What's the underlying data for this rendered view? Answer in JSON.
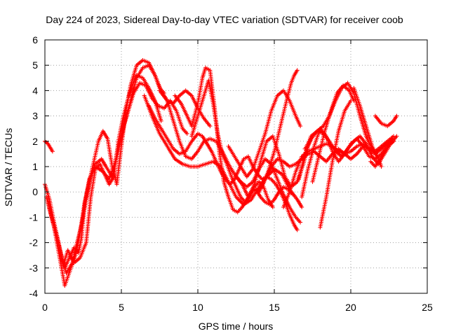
{
  "chart_data": {
    "type": "scatter",
    "title": "Day 224 of 2023, Sidereal Day-to-day VTEC variation (SDTVAR) for receiver coob",
    "xlabel": "GPS time / hours",
    "ylabel": "SDTVAR / TECUs",
    "xlim": [
      0,
      25
    ],
    "ylim": [
      -4,
      6
    ],
    "xticks": [
      "0",
      "5",
      "10",
      "15",
      "20",
      "25"
    ],
    "yticks": [
      "-4",
      "-3",
      "-2",
      "-1",
      "0",
      "1",
      "2",
      "3",
      "4",
      "5",
      "6"
    ],
    "grid": true,
    "legend": "none",
    "marker": "plus",
    "color": "#ff0000",
    "series": [
      {
        "x": [
          0.0,
          0.2,
          0.5
        ],
        "y": [
          2.0,
          1.9,
          1.6
        ]
      },
      {
        "x": [
          0.0,
          0.3,
          0.6,
          1.0,
          1.3,
          1.6,
          1.9,
          2.2,
          2.4,
          2.6,
          2.9,
          3.3,
          3.8,
          4.2,
          4.6,
          5.0,
          5.4,
          5.8,
          6.2,
          6.6,
          7.0,
          7.4,
          7.8,
          8.2,
          8.6,
          9.0,
          9.3
        ],
        "y": [
          0.3,
          -0.3,
          -1.2,
          -2.3,
          -3.0,
          -2.6,
          -2.2,
          -2.4,
          -1.8,
          -0.5,
          0.5,
          1.0,
          0.8,
          0.5,
          1.2,
          2.3,
          3.1,
          3.9,
          4.3,
          4.2,
          3.7,
          3.4,
          3.3,
          3.6,
          3.2,
          2.5,
          2.3
        ]
      },
      {
        "x": [
          0.1,
          0.4,
          0.8,
          1.1,
          1.4,
          1.8,
          2.1,
          2.4,
          2.7,
          3.0,
          3.3,
          3.7,
          4.0,
          4.4,
          4.8,
          5.2,
          5.6,
          6.0,
          6.4,
          6.8,
          7.2,
          7.6,
          8.0,
          8.4,
          8.8,
          9.2,
          9.6,
          10.0,
          10.4,
          10.8
        ],
        "y": [
          -0.2,
          -0.9,
          -1.8,
          -2.6,
          -3.2,
          -2.8,
          -2.0,
          -1.3,
          -0.3,
          0.6,
          1.1,
          1.3,
          1.0,
          0.6,
          1.6,
          2.7,
          3.6,
          4.5,
          4.9,
          5.0,
          4.6,
          4.0,
          3.6,
          3.5,
          3.8,
          4.0,
          3.8,
          3.3,
          2.9,
          2.6
        ]
      },
      {
        "x": [
          0.2,
          0.6,
          1.0,
          1.3,
          1.7,
          2.0,
          2.3,
          2.6,
          2.9,
          3.2,
          3.5,
          3.8,
          4.1,
          4.4,
          4.7,
          5.0,
          5.3,
          5.6,
          6.0,
          6.4,
          6.8,
          7.2,
          7.5,
          7.8
        ],
        "y": [
          -0.4,
          -1.4,
          -2.7,
          -3.7,
          -3.0,
          -2.5,
          -1.6,
          -0.4,
          0.4,
          1.2,
          2.0,
          2.4,
          2.1,
          1.0,
          0.3,
          1.8,
          3.2,
          4.2,
          5.0,
          5.2,
          5.1,
          4.6,
          4.1,
          3.9
        ]
      },
      {
        "x": [
          1.2,
          1.5,
          1.9,
          2.3,
          2.7,
          3.0,
          3.3,
          3.6,
          3.9,
          4.2,
          4.5,
          4.8,
          5.1,
          5.4,
          5.7,
          6.0,
          6.4,
          6.8,
          7.2,
          7.6
        ],
        "y": [
          -2.9,
          -2.3,
          -2.8,
          -2.6,
          -2.0,
          -0.2,
          0.9,
          1.1,
          0.7,
          0.3,
          0.6,
          2.0,
          2.9,
          3.6,
          4.2,
          4.6,
          4.5,
          4.1,
          3.6,
          2.8
        ]
      },
      {
        "x": [
          6.8,
          7.2,
          7.6,
          8.0,
          8.4,
          8.8,
          9.2,
          9.6,
          10.0,
          10.3,
          10.6,
          10.9,
          11.2,
          11.5,
          11.8,
          12.1,
          12.4,
          12.7,
          13.0,
          13.3,
          13.6,
          13.9,
          14.2,
          14.5,
          14.8,
          15.1,
          15.4,
          15.7,
          16.0,
          16.3,
          16.5
        ],
        "y": [
          3.4,
          2.9,
          2.5,
          2.1,
          1.7,
          1.5,
          1.6,
          2.0,
          2.3,
          2.2,
          1.9,
          1.6,
          1.2,
          0.8,
          0.5,
          0.3,
          0.5,
          0.9,
          1.3,
          1.4,
          1.0,
          0.7,
          0.5,
          0.6,
          0.5,
          0.3,
          0.0,
          -0.4,
          -0.9,
          -1.3,
          -1.5
        ]
      },
      {
        "x": [
          6.5,
          7.0,
          7.5,
          8.0,
          8.5,
          9.0,
          9.5,
          10.0,
          10.5,
          11.0,
          11.5,
          12.0,
          12.5,
          13.0,
          13.5,
          14.0,
          14.5,
          15.0,
          15.5,
          16.0,
          16.5,
          16.8
        ],
        "y": [
          3.8,
          3.0,
          2.3,
          1.8,
          1.3,
          1.1,
          1.0,
          1.0,
          1.1,
          1.2,
          1.0,
          0.4,
          -0.2,
          -0.5,
          -0.3,
          0.2,
          0.6,
          0.9,
          0.7,
          0.1,
          -0.3,
          -0.6
        ]
      },
      {
        "x": [
          7.5,
          8.0,
          8.4,
          8.8,
          9.2,
          9.6,
          10.0,
          10.4,
          10.8,
          11.2,
          11.6,
          12.0,
          12.4,
          12.8,
          13.2,
          13.6,
          14.0,
          14.4,
          14.8,
          15.2,
          15.6,
          16.0,
          16.4,
          16.7
        ],
        "y": [
          4.0,
          3.6,
          2.8,
          2.0,
          1.4,
          1.3,
          1.6,
          2.0,
          2.1,
          2.0,
          1.6,
          1.1,
          0.7,
          0.4,
          0.2,
          0.4,
          0.9,
          1.3,
          1.1,
          0.5,
          -0.1,
          -0.6,
          -1.0,
          -1.2
        ]
      },
      {
        "x": [
          8.5,
          8.9,
          9.3,
          9.6,
          10.0,
          10.3,
          10.5,
          10.8,
          11.1,
          11.4,
          11.7,
          12.0,
          12.3,
          12.6,
          12.9,
          13.2,
          13.5,
          13.8,
          14.1,
          14.4,
          14.7,
          15.0,
          15.3,
          15.6,
          15.9,
          16.2
        ],
        "y": [
          3.8,
          3.5,
          3.0,
          2.6,
          3.5,
          4.5,
          4.9,
          4.8,
          3.3,
          1.6,
          0.4,
          -0.2,
          -0.7,
          -0.8,
          -0.6,
          -0.3,
          0.0,
          0.1,
          -0.2,
          -0.4,
          -0.5,
          -0.3,
          0.0,
          0.2,
          0.1,
          -0.1
        ]
      },
      {
        "x": [
          9.6,
          10.0,
          10.4,
          10.7,
          11.0,
          11.3,
          11.6,
          11.9,
          12.2,
          12.5,
          12.8,
          13.1,
          13.4,
          13.7,
          14.0,
          14.3,
          14.6,
          14.9
        ],
        "y": [
          2.2,
          3.0,
          3.8,
          4.4,
          3.5,
          2.3,
          1.5,
          1.1,
          0.6,
          0.2,
          -0.2,
          -0.4,
          -0.2,
          0.2,
          0.4,
          0.2,
          -0.3,
          -0.6
        ]
      },
      {
        "x": [
          12.0,
          12.4,
          12.8,
          13.2,
          13.6,
          14.0,
          14.4,
          14.8,
          15.2,
          15.6,
          16.0,
          16.4,
          16.7
        ],
        "y": [
          1.8,
          1.4,
          1.0,
          0.6,
          0.9,
          1.6,
          2.3,
          3.2,
          3.8,
          4.0,
          3.6,
          3.0,
          2.6
        ]
      },
      {
        "x": [
          12.5,
          12.9,
          13.3,
          13.7,
          14.1,
          14.5,
          14.9,
          15.3,
          15.7,
          16.1,
          16.5,
          16.9,
          17.2,
          17.5
        ],
        "y": [
          0.6,
          0.3,
          -0.2,
          0.3,
          1.2,
          2.0,
          2.2,
          1.5,
          0.6,
          0.2,
          0.4,
          1.1,
          1.8,
          2.2
        ]
      },
      {
        "x": [
          14.2,
          14.6,
          15.0,
          15.4,
          15.8,
          16.1,
          16.3,
          16.5
        ],
        "y": [
          0.2,
          0.8,
          1.6,
          2.6,
          3.6,
          4.3,
          4.6,
          4.8
        ]
      },
      {
        "x": [
          14.0,
          14.4,
          14.8,
          15.2,
          15.6,
          16.0,
          16.4,
          16.8,
          17.2,
          17.6,
          18.0,
          18.4,
          18.8,
          19.2,
          19.6,
          20.0,
          20.4,
          20.8,
          21.2,
          21.6,
          22.0,
          22.4,
          22.8
        ],
        "y": [
          0.0,
          0.5,
          1.0,
          1.3,
          1.2,
          1.0,
          1.1,
          1.3,
          1.5,
          1.6,
          1.4,
          1.2,
          1.5,
          1.7,
          1.5,
          1.3,
          1.5,
          1.8,
          1.7,
          1.5,
          1.7,
          1.9,
          2.1
        ]
      },
      {
        "x": [
          15.6,
          16.0,
          16.4,
          16.8,
          17.2,
          17.6,
          18.0,
          18.4,
          18.8,
          19.2,
          19.6,
          20.0,
          20.4,
          20.8,
          21.2,
          21.6,
          22.0,
          22.4,
          22.8
        ],
        "y": [
          -0.6,
          0.0,
          0.8,
          1.4,
          1.6,
          1.7,
          1.8,
          1.9,
          1.8,
          1.6,
          1.5,
          1.6,
          1.8,
          1.9,
          1.7,
          1.6,
          1.8,
          2.0,
          2.2
        ]
      },
      {
        "x": [
          16.6,
          17.0,
          17.4,
          17.8,
          18.2,
          18.6,
          19.0,
          19.4,
          19.8,
          20.2,
          20.6,
          21.0,
          21.4,
          21.8,
          22.2,
          22.6,
          23.0
        ],
        "y": [
          0.5,
          1.5,
          2.2,
          2.4,
          2.3,
          2.0,
          1.6,
          1.4,
          1.7,
          2.0,
          2.2,
          1.9,
          1.4,
          1.1,
          1.5,
          1.9,
          2.2
        ]
      },
      {
        "x": [
          16.8,
          17.2,
          17.6,
          18.0,
          18.4,
          18.8,
          19.2,
          19.6,
          20.0,
          20.4,
          20.8,
          21.2,
          21.6,
          22.0,
          22.4,
          22.8
        ],
        "y": [
          -0.2,
          0.9,
          1.8,
          2.5,
          2.2,
          1.6,
          1.2,
          1.5,
          1.9,
          2.1,
          1.8,
          1.4,
          1.3,
          1.5,
          1.8,
          2.0
        ]
      },
      {
        "x": [
          17.0,
          17.4,
          17.8,
          18.2,
          18.6,
          19.0,
          19.4,
          19.8,
          20.2,
          20.6,
          21.0,
          21.4
        ],
        "y": [
          1.7,
          2.1,
          2.4,
          2.6,
          3.0,
          3.6,
          4.1,
          4.3,
          3.9,
          3.0,
          2.2,
          1.7
        ]
      },
      {
        "x": [
          17.5,
          17.9,
          18.3,
          18.7,
          19.1,
          19.5,
          19.9,
          20.2
        ],
        "y": [
          0.4,
          1.4,
          2.4,
          3.2,
          3.9,
          4.2,
          4.0,
          3.6
        ]
      },
      {
        "x": [
          18.0,
          18.4,
          18.8,
          19.2,
          19.6,
          20.0
        ],
        "y": [
          -1.4,
          -0.2,
          1.2,
          2.4,
          3.2,
          3.6
        ]
      },
      {
        "x": [
          20.2,
          20.6,
          21.0,
          21.4,
          21.8,
          22.0
        ],
        "y": [
          4.1,
          3.4,
          2.6,
          1.8,
          1.3,
          1.0
        ]
      },
      {
        "x": [
          21.6,
          22.0,
          22.4,
          22.8,
          23.0
        ],
        "y": [
          3.0,
          2.7,
          2.6,
          2.8,
          3.0
        ]
      },
      {
        "x": [
          21.3,
          21.6,
          22.0,
          22.4,
          22.8
        ],
        "y": [
          1.2,
          1.0,
          1.4,
          1.8,
          2.0
        ]
      }
    ]
  }
}
